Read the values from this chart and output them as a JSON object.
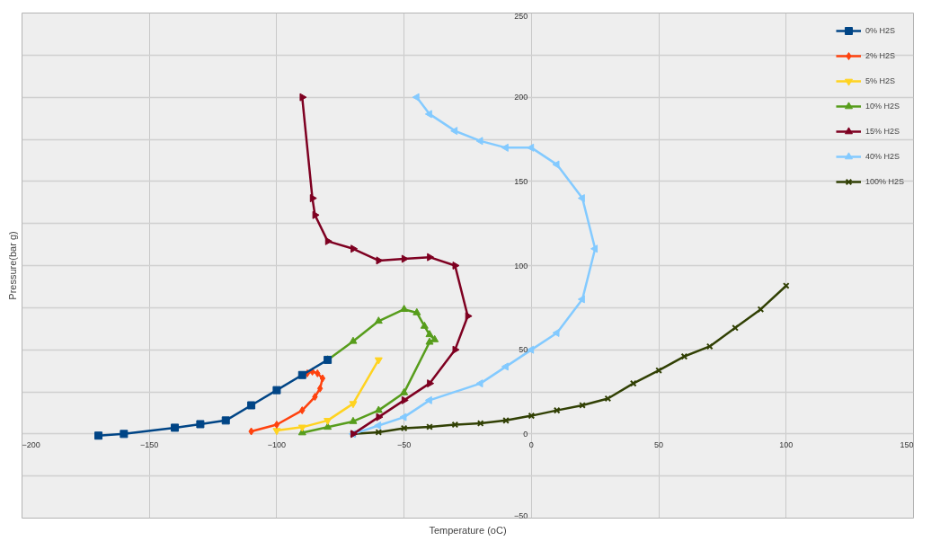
{
  "chart_data": {
    "type": "line",
    "xlabel": "Temperature (oC)",
    "ylabel": "Pressure(bar g)",
    "xlim": [
      -200,
      150
    ],
    "ylim": [
      -50,
      250
    ],
    "xticks": [
      -200,
      -150,
      -100,
      -50,
      0,
      50,
      100,
      150
    ],
    "yticks": [
      -50,
      {
        "value": -25,
        "label": null
      },
      0,
      {
        "value": 25,
        "label": null
      },
      50,
      {
        "value": 75,
        "label": null
      },
      100,
      {
        "value": 125,
        "label": null
      },
      150,
      {
        "value": 175,
        "label": null
      },
      200,
      {
        "value": 225,
        "label": null
      },
      250
    ],
    "grid": true,
    "legend": "top right",
    "line_style": "solid",
    "series": [
      {
        "name": "0% H2S",
        "color": "#004586",
        "marker": "square",
        "x": [
          -170,
          -160,
          -140,
          -130,
          -120,
          -110,
          -100,
          -90,
          -80
        ],
        "values": [
          -1,
          0,
          3.7,
          5.8,
          8,
          17,
          26,
          35,
          44
        ]
      },
      {
        "name": "2% H2S",
        "color": "#ff420e",
        "marker": "diamond",
        "x": [
          -110,
          -100,
          -90,
          -85,
          -83,
          -82,
          -84,
          -86,
          -88
        ],
        "values": [
          1.5,
          5.5,
          14,
          22,
          27,
          33,
          36,
          37,
          36
        ]
      },
      {
        "name": "5% H2S",
        "color": "#ffd320",
        "marker": "triangle-down",
        "x": [
          -100,
          -90,
          -80,
          -70,
          -60
        ],
        "values": [
          2,
          4,
          8,
          18,
          44
        ]
      },
      {
        "name": "10% H2S",
        "color": "#579d1c",
        "marker": "triangle",
        "x": [
          -90,
          -80,
          -70,
          -60,
          -50,
          -40,
          -38,
          -40,
          -42,
          -45,
          -50,
          -60,
          -70,
          -80
        ],
        "values": [
          0.7,
          4,
          7.4,
          14,
          24.5,
          54.5,
          56,
          59,
          64,
          72,
          74,
          67,
          55,
          44
        ]
      },
      {
        "name": "15% H2S",
        "color": "#7e0021",
        "marker": "triangle-right",
        "x": [
          -90,
          -86,
          -85,
          -80,
          -70,
          -60,
          -50,
          -40,
          -30,
          -25,
          -30,
          -40,
          -50,
          -60,
          -70
        ],
        "values": [
          200,
          140,
          130,
          114.5,
          110,
          103,
          104,
          105,
          100,
          70,
          50,
          30,
          20,
          10,
          0
        ]
      },
      {
        "name": "40% H2S",
        "color": "#83caff",
        "marker": "triangle-left",
        "x": [
          -45,
          -40,
          -30,
          -20,
          -10,
          0,
          10,
          20,
          25,
          20,
          10,
          0,
          -10,
          -20,
          -40,
          -50,
          -60,
          -70
        ],
        "values": [
          200,
          190,
          180,
          174,
          170,
          170,
          160,
          140,
          110,
          80,
          60,
          50,
          40,
          30,
          20,
          10,
          5,
          0
        ]
      },
      {
        "name": "100% H2S",
        "color": "#314004",
        "marker": "cross",
        "x": [
          -70,
          -60,
          -50,
          -40,
          -30,
          -20,
          -10,
          0,
          10,
          20,
          30,
          40,
          50,
          60,
          70,
          80,
          90,
          100
        ],
        "values": [
          0,
          1,
          3.4,
          4.2,
          5.5,
          6.3,
          8,
          10.8,
          14,
          17,
          21,
          30,
          37.7,
          46,
          52,
          63,
          74,
          88
        ]
      }
    ]
  }
}
